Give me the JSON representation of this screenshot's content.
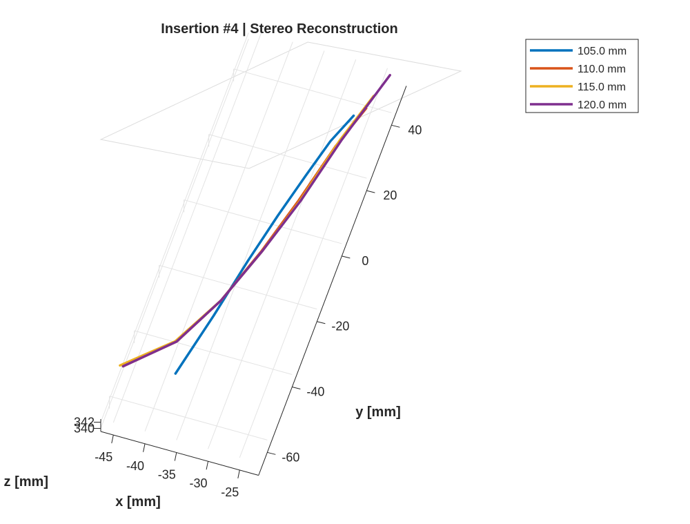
{
  "chart_data": {
    "type": "line",
    "title": "Insertion #4 | Stereo Reconstruction",
    "xlabel": "x [mm]",
    "ylabel": "y [mm]",
    "zlabel": "z [mm]",
    "xlim": [
      -47,
      -22
    ],
    "ylim": [
      -67,
      52
    ],
    "zlim": [
      339,
      343
    ],
    "xticks": [
      -45,
      -40,
      -35,
      -30,
      -25
    ],
    "yticks": [
      -60,
      -40,
      -20,
      0,
      20,
      40
    ],
    "zticks": [
      340,
      342
    ],
    "grid": true,
    "legend_position": "top-right",
    "view": "3d",
    "series": [
      {
        "name": "105.0 mm",
        "color": "#0072BD",
        "x": [
          -38.9,
          -36.6,
          -34.7,
          -32.9,
          -31.2,
          -29.5,
          -27.6
        ],
        "y": [
          -48,
          -29,
          -11,
          4,
          17,
          29,
          38
        ],
        "z": [
          342.2,
          342.1,
          341.9,
          341.7,
          341.4,
          341.2,
          341.0
        ]
      },
      {
        "name": "110.0 mm",
        "color": "#D95319",
        "x": [
          -46.8,
          -40.5,
          -36.4,
          -33.3,
          -30.8,
          -28.5,
          -26.2
        ],
        "y": [
          -50,
          -39,
          -24,
          -7,
          10,
          28,
          41
        ],
        "z": [
          342.2,
          342.1,
          341.9,
          341.7,
          341.4,
          341.2,
          341.0
        ]
      },
      {
        "name": "115.0 mm",
        "color": "#EDB120",
        "x": [
          -47.3,
          -40.7,
          -36.4,
          -33.2,
          -30.6,
          -28.2,
          -25.8
        ],
        "y": [
          -50,
          -39,
          -24,
          -7,
          10,
          30,
          45
        ],
        "z": [
          342.2,
          342.1,
          341.9,
          341.7,
          341.4,
          341.2,
          341.0
        ]
      },
      {
        "name": "120.0 mm",
        "color": "#7E2F8E",
        "x": [
          -46.8,
          -40.5,
          -36.4,
          -33.2,
          -30.5,
          -28.0,
          -24.6
        ],
        "y": [
          -50,
          -39,
          -24,
          -7,
          10,
          30,
          52
        ],
        "z": [
          342.2,
          342.1,
          341.9,
          341.7,
          341.4,
          341.2,
          341.0
        ]
      }
    ]
  }
}
